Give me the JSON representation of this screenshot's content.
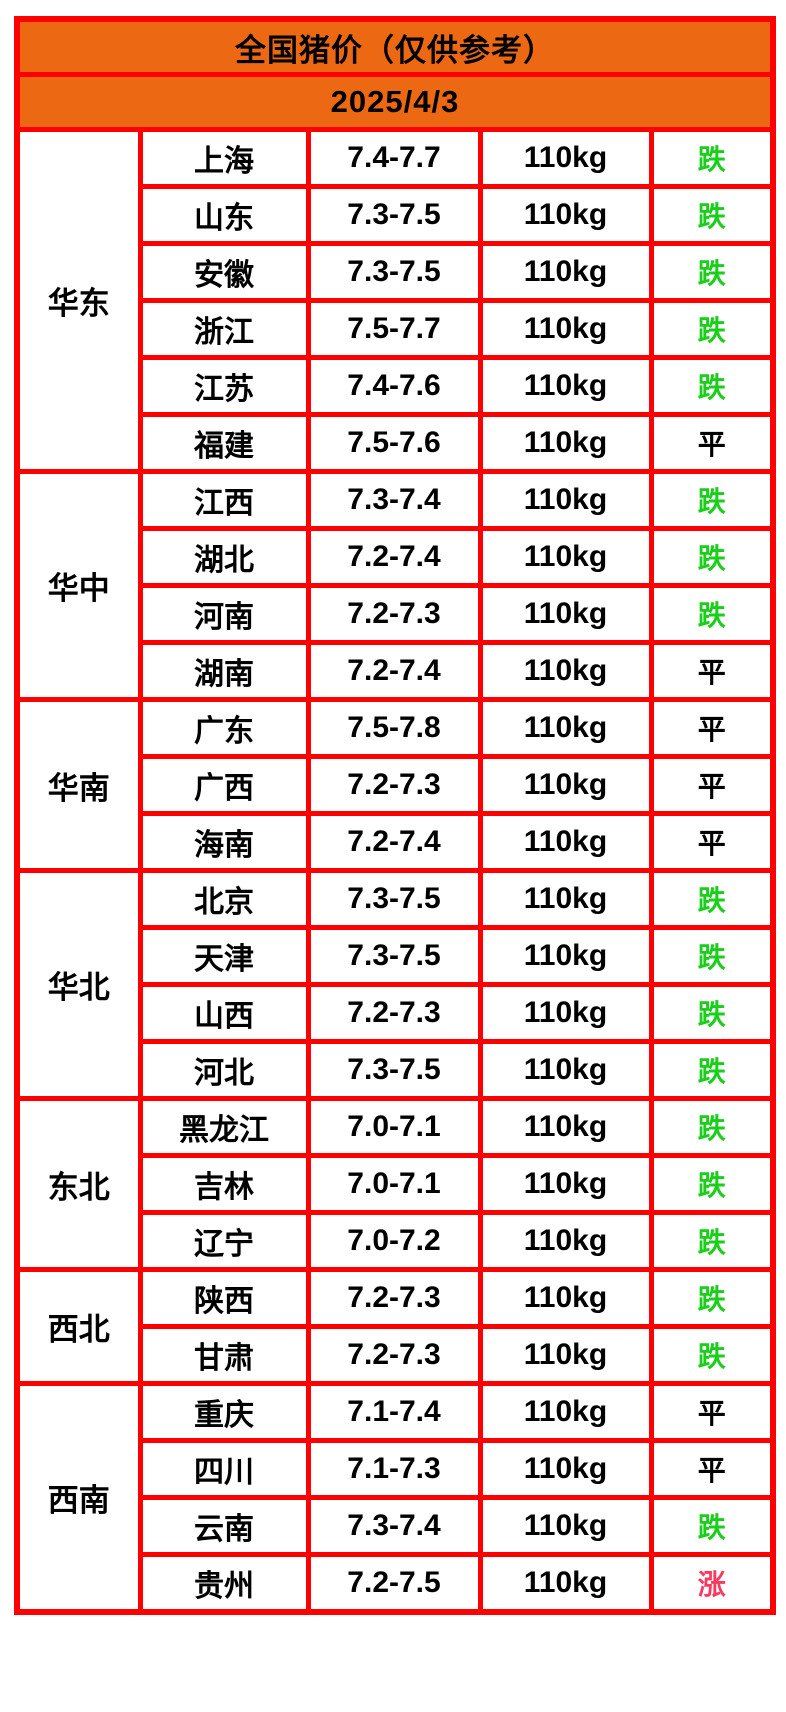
{
  "header": {
    "title": "全国猪价（仅供参考）",
    "date": "2025/4/3"
  },
  "colors": {
    "header_background": "#EC6813",
    "grid_border": "#FE0000",
    "status_down": "#1BCE1B",
    "status_flat": "#000000",
    "status_up": "#F93A5E"
  },
  "status_colors": {
    "跌": "#1BCE1B",
    "平": "#000000",
    "涨": "#F93A5E"
  },
  "regions": [
    {
      "name": "华东",
      "rows": [
        {
          "province": "上海",
          "price": "7.4-7.7",
          "weight": "110kg",
          "status": "跌"
        },
        {
          "province": "山东",
          "price": "7.3-7.5",
          "weight": "110kg",
          "status": "跌"
        },
        {
          "province": "安徽",
          "price": "7.3-7.5",
          "weight": "110kg",
          "status": "跌"
        },
        {
          "province": "浙江",
          "price": "7.5-7.7",
          "weight": "110kg",
          "status": "跌"
        },
        {
          "province": "江苏",
          "price": "7.4-7.6",
          "weight": "110kg",
          "status": "跌"
        },
        {
          "province": "福建",
          "price": "7.5-7.6",
          "weight": "110kg",
          "status": "平"
        }
      ]
    },
    {
      "name": "华中",
      "rows": [
        {
          "province": "江西",
          "price": "7.3-7.4",
          "weight": "110kg",
          "status": "跌"
        },
        {
          "province": "湖北",
          "price": "7.2-7.4",
          "weight": "110kg",
          "status": "跌"
        },
        {
          "province": "河南",
          "price": "7.2-7.3",
          "weight": "110kg",
          "status": "跌"
        },
        {
          "province": "湖南",
          "price": "7.2-7.4",
          "weight": "110kg",
          "status": "平"
        }
      ]
    },
    {
      "name": "华南",
      "rows": [
        {
          "province": "广东",
          "price": "7.5-7.8",
          "weight": "110kg",
          "status": "平"
        },
        {
          "province": "广西",
          "price": "7.2-7.3",
          "weight": "110kg",
          "status": "平"
        },
        {
          "province": "海南",
          "price": "7.2-7.4",
          "weight": "110kg",
          "status": "平"
        }
      ]
    },
    {
      "name": "华北",
      "rows": [
        {
          "province": "北京",
          "price": "7.3-7.5",
          "weight": "110kg",
          "status": "跌"
        },
        {
          "province": "天津",
          "price": "7.3-7.5",
          "weight": "110kg",
          "status": "跌"
        },
        {
          "province": "山西",
          "price": "7.2-7.3",
          "weight": "110kg",
          "status": "跌"
        },
        {
          "province": "河北",
          "price": "7.3-7.5",
          "weight": "110kg",
          "status": "跌"
        }
      ]
    },
    {
      "name": "东北",
      "rows": [
        {
          "province": "黑龙江",
          "price": "7.0-7.1",
          "weight": "110kg",
          "status": "跌"
        },
        {
          "province": "吉林",
          "price": "7.0-7.1",
          "weight": "110kg",
          "status": "跌"
        },
        {
          "province": "辽宁",
          "price": "7.0-7.2",
          "weight": "110kg",
          "status": "跌"
        }
      ]
    },
    {
      "name": "西北",
      "rows": [
        {
          "province": "陕西",
          "price": "7.2-7.3",
          "weight": "110kg",
          "status": "跌"
        },
        {
          "province": "甘肃",
          "price": "7.2-7.3",
          "weight": "110kg",
          "status": "跌"
        }
      ]
    },
    {
      "name": "西南",
      "rows": [
        {
          "province": "重庆",
          "price": "7.1-7.4",
          "weight": "110kg",
          "status": "平"
        },
        {
          "province": "四川",
          "price": "7.1-7.3",
          "weight": "110kg",
          "status": "平"
        },
        {
          "province": "云南",
          "price": "7.3-7.4",
          "weight": "110kg",
          "status": "跌"
        },
        {
          "province": "贵州",
          "price": "7.2-7.5",
          "weight": "110kg",
          "status": "涨"
        }
      ]
    }
  ]
}
